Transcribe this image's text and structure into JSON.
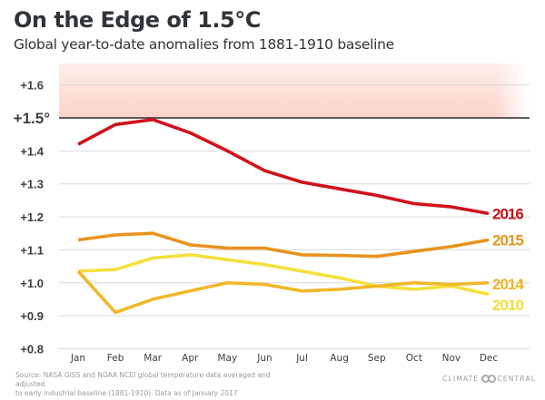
{
  "header": {
    "title": "On the Edge of 1.5°C",
    "subtitle": "Global year-to-date anomalies from 1881-1910 baseline"
  },
  "footer": {
    "source_line1": "Source: NASA GISS and NOAA NCEI global temperature data averaged and adjusted",
    "source_line2": "to early industrial baseline (1881-1910). Data as of January 2017",
    "logo_left": "CLIMATE",
    "logo_right": "CENTRAL",
    "logo_icon": "double-ring-logo-icon"
  },
  "chart_data": {
    "type": "line",
    "title": "On the Edge of 1.5°C",
    "subtitle": "Global year-to-date anomalies from 1881-1910 baseline",
    "xlabel": "",
    "ylabel": "",
    "x": [
      "Jan",
      "Feb",
      "Mar",
      "Apr",
      "May",
      "Jun",
      "Jul",
      "Aug",
      "Sep",
      "Oct",
      "Nov",
      "Dec"
    ],
    "ylim": [
      0.8,
      1.65
    ],
    "yticks": [
      {
        "value": 1.6,
        "label": "+1.6"
      },
      {
        "value": 1.5,
        "label": "+1.5°",
        "emphasis": true
      },
      {
        "value": 1.4,
        "label": "+1.4"
      },
      {
        "value": 1.3,
        "label": "+1.3"
      },
      {
        "value": 1.2,
        "label": "+1.2"
      },
      {
        "value": 1.1,
        "label": "+1.1"
      },
      {
        "value": 1.0,
        "label": "+1.0"
      },
      {
        "value": 0.9,
        "label": "+0.9"
      },
      {
        "value": 0.8,
        "label": "+0.8"
      }
    ],
    "grid": true,
    "threshold": {
      "value": 1.5,
      "shaded_above": true,
      "shade_color": "#fbd3c8"
    },
    "legend": "direct-labels-right",
    "series": [
      {
        "name": "2016",
        "color": "#d0111b",
        "values": [
          1.42,
          1.48,
          1.495,
          1.455,
          1.4,
          1.34,
          1.305,
          1.285,
          1.265,
          1.24,
          1.23,
          1.21
        ]
      },
      {
        "name": "2015",
        "color": "#e8931e",
        "values": [
          1.13,
          1.145,
          1.15,
          1.115,
          1.105,
          1.105,
          1.085,
          1.083,
          1.08,
          1.095,
          1.11,
          1.13
        ]
      },
      {
        "name": "2014",
        "color": "#f0b82a",
        "values": [
          1.035,
          0.91,
          0.95,
          0.975,
          1.0,
          0.995,
          0.975,
          0.98,
          0.99,
          1.0,
          0.995,
          1.0
        ]
      },
      {
        "name": "2010",
        "color": "#f5e03c",
        "values": [
          1.035,
          1.04,
          1.075,
          1.085,
          1.07,
          1.055,
          1.035,
          1.015,
          0.99,
          0.98,
          0.99,
          0.965
        ]
      }
    ],
    "label_colors": {
      "2016": "#c8101a",
      "2015": "#e8951f",
      "2014": "#efb523",
      "2010": "#f2de3a"
    }
  }
}
